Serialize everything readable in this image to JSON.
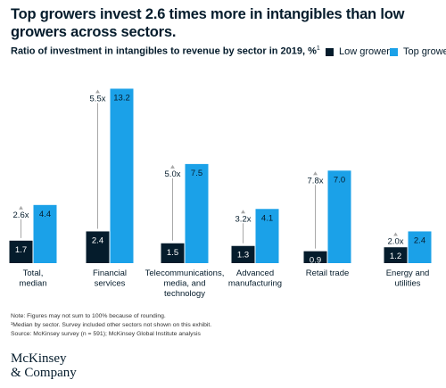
{
  "headline": "Top growers invest 2.6 times more in intangibles than low growers across sectors.",
  "subtitle": "Ratio of investment in intangibles to revenue by sector in 2019, %",
  "subtitle_footnote": "1",
  "colors": {
    "low": "#051c2c",
    "top": "#1ba1e8",
    "arrow": "#a8a8a8",
    "text_dark": "#051c2c"
  },
  "chart_data": {
    "type": "bar",
    "title": "Ratio of investment in intangibles to revenue by sector in 2019, %",
    "categories": [
      [
        "Total,",
        "median"
      ],
      [
        "Financial",
        "services"
      ],
      [
        "Telecommunications,",
        "media, and",
        "technology"
      ],
      [
        "Advanced",
        "manufacturing"
      ],
      [
        "Retail trade"
      ],
      [
        "Energy and",
        "utilities"
      ]
    ],
    "series": [
      {
        "name": "Low growers",
        "values": [
          1.7,
          2.4,
          1.5,
          1.3,
          0.9,
          1.2
        ],
        "labels": [
          "1.7",
          "2.4",
          "1.5",
          "1.3",
          "0.9",
          "1.2"
        ]
      },
      {
        "name": "Top growers",
        "values": [
          4.4,
          13.2,
          7.5,
          4.1,
          7.0,
          2.4
        ],
        "labels": [
          "4.4",
          "13.2",
          "7.5",
          "4.1",
          "7.0",
          "2.4"
        ]
      }
    ],
    "multipliers": [
      "2.6x",
      "5.5x",
      "5.0x",
      "3.2x",
      "7.8x",
      "2.0x"
    ],
    "ylim": [
      0,
      13.5
    ],
    "legend": "top-right"
  },
  "notes": [
    "Note: Figures may not sum to 100% because of rounding.",
    "¹Median by sector. Survey included other sectors not shown on this exhibit.",
    "Source: McKinsey survey (n = 591); McKinsey Global Institute analysis"
  ],
  "logo": [
    "McKinsey",
    "& Company"
  ]
}
